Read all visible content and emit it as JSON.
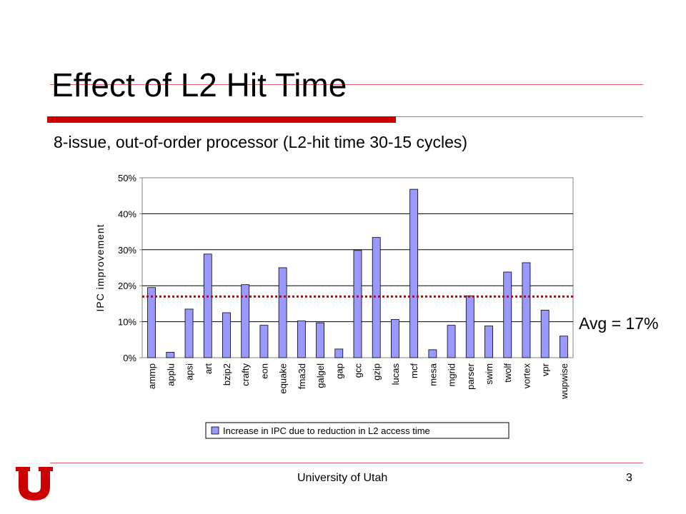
{
  "slide": {
    "title": "Effect of L2 Hit Time",
    "subtitle": "8-issue, out-of-order processor (L2-hit time 30-15 cycles)",
    "avg_label": "Avg = 17%",
    "footer": "University of Utah",
    "page_number": "3"
  },
  "colors": {
    "accent": "#cc0000",
    "bar_fill": "#9999ff",
    "avg_line": "#cc0000"
  },
  "chart_data": {
    "type": "bar",
    "title": "",
    "xlabel": "",
    "ylabel": "IPC improvement",
    "ylim": [
      0,
      50
    ],
    "yticks": [
      "0%",
      "10%",
      "20%",
      "30%",
      "40%",
      "50%"
    ],
    "grid": true,
    "legend_position": "bottom",
    "categories": [
      "ammp",
      "applu",
      "apsi",
      "art",
      "bzip2",
      "crafty",
      "eon",
      "equake",
      "fma3d",
      "galgel",
      "gap",
      "gcc",
      "gzip",
      "lucas",
      "mcf",
      "mesa",
      "mgrid",
      "parser",
      "swim",
      "twolf",
      "vortex",
      "vpr",
      "wupwise"
    ],
    "series": [
      {
        "name": "Increase in IPC due to reduction in L2 access time",
        "values": [
          19.5,
          1.5,
          13.5,
          28.8,
          12.5,
          20.3,
          9,
          25,
          10.2,
          9.7,
          2.4,
          29.8,
          33.4,
          10.6,
          46.8,
          2.2,
          9,
          17.2,
          8.8,
          23.8,
          26.4,
          13.2,
          6
        ]
      }
    ],
    "average": 17
  }
}
